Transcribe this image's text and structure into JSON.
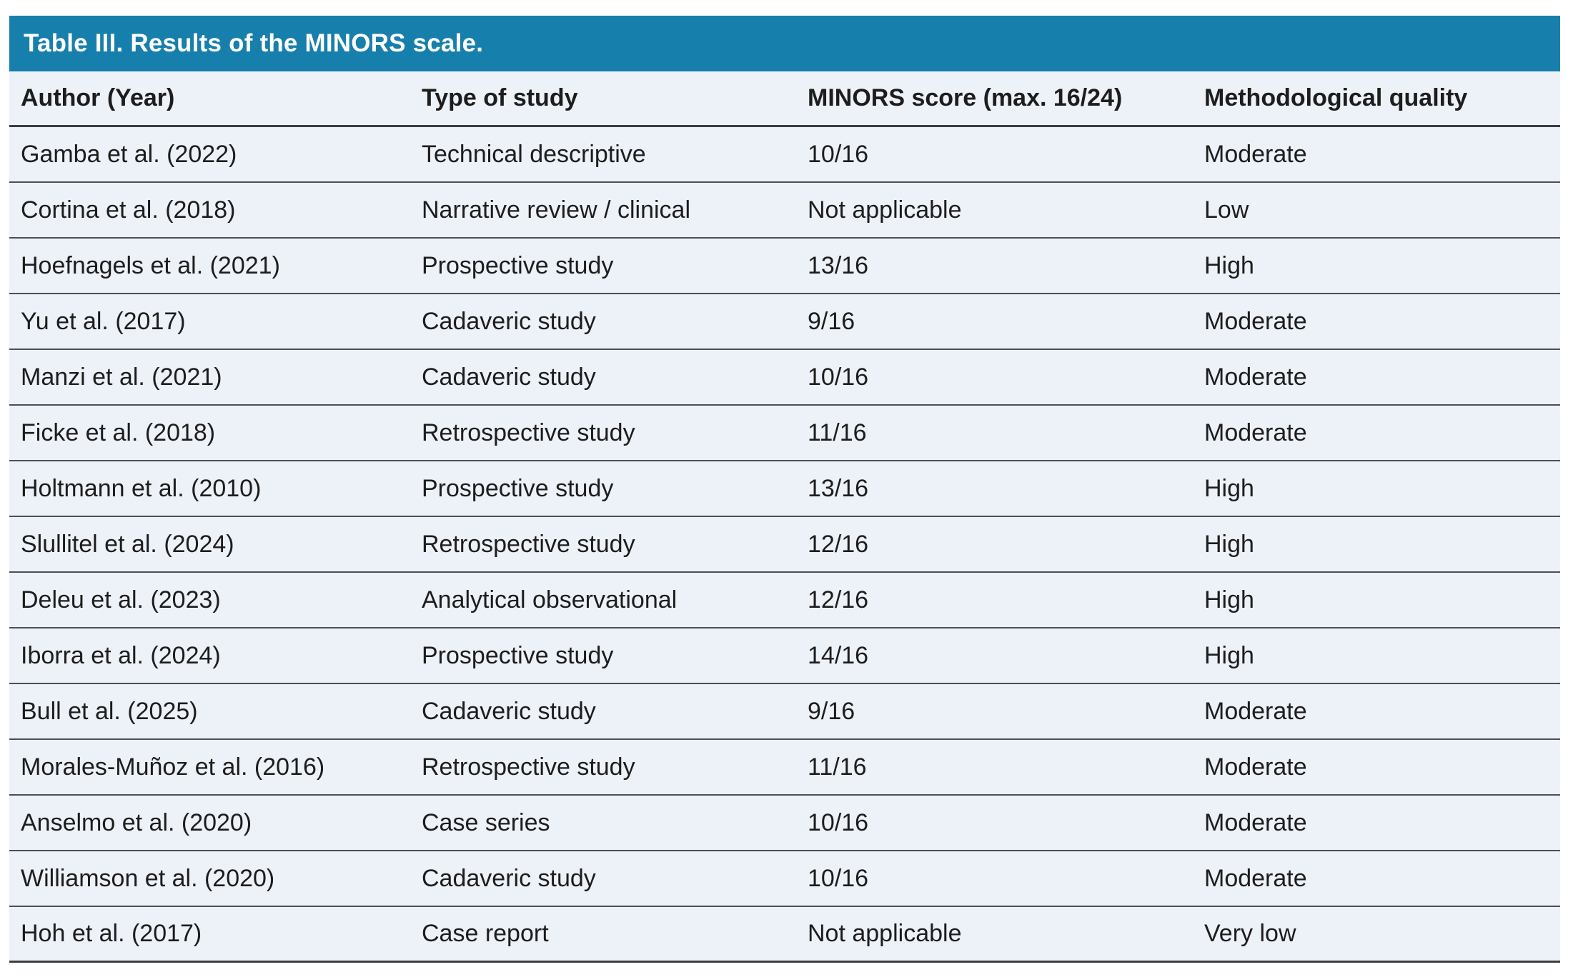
{
  "table": {
    "title": "Table III. Results of the MINORS scale.",
    "columns": [
      "Author (Year)",
      "Type of study",
      "MINORS score (max. 16/24)",
      "Methodological quality"
    ],
    "rows": [
      {
        "author": "Gamba et al. (2022)",
        "type_of_study": "Technical descriptive",
        "minors_score": "10/16",
        "quality": "Moderate"
      },
      {
        "author": "Cortina et al. (2018)",
        "type_of_study": "Narrative review / clinical",
        "minors_score": "Not applicable",
        "quality": "Low"
      },
      {
        "author": "Hoefnagels et al. (2021)",
        "type_of_study": "Prospective study",
        "minors_score": "13/16",
        "quality": "High"
      },
      {
        "author": "Yu et al. (2017)",
        "type_of_study": "Cadaveric study",
        "minors_score": "9/16",
        "quality": "Moderate"
      },
      {
        "author": "Manzi et al. (2021)",
        "type_of_study": "Cadaveric study",
        "minors_score": "10/16",
        "quality": "Moderate"
      },
      {
        "author": "Ficke et al. (2018)",
        "type_of_study": "Retrospective study",
        "minors_score": "11/16",
        "quality": "Moderate"
      },
      {
        "author": "Holtmann et al. (2010)",
        "type_of_study": "Prospective study",
        "minors_score": "13/16",
        "quality": "High"
      },
      {
        "author": "Slullitel et al. (2024)",
        "type_of_study": "Retrospective study",
        "minors_score": "12/16",
        "quality": "High"
      },
      {
        "author": "Deleu et al. (2023)",
        "type_of_study": "Analytical observational",
        "minors_score": "12/16",
        "quality": "High"
      },
      {
        "author": "Iborra et al. (2024)",
        "type_of_study": "Prospective study",
        "minors_score": "14/16",
        "quality": "High"
      },
      {
        "author": "Bull et al. (2025)",
        "type_of_study": "Cadaveric study",
        "minors_score": "9/16",
        "quality": "Moderate"
      },
      {
        "author": "Morales-Muñoz et al. (2016)",
        "type_of_study": "Retrospective study",
        "minors_score": "11/16",
        "quality": "Moderate"
      },
      {
        "author": "Anselmo et al. (2020)",
        "type_of_study": "Case series",
        "minors_score": "10/16",
        "quality": "Moderate"
      },
      {
        "author": "Williamson et al. (2020)",
        "type_of_study": "Cadaveric study",
        "minors_score": "10/16",
        "quality": "Moderate"
      },
      {
        "author": "Hoh et al. (2017)",
        "type_of_study": "Case report",
        "minors_score": "Not applicable",
        "quality": "Very low"
      }
    ]
  },
  "colors": {
    "title_bar_bg": "#177fab",
    "title_text": "#ffffff",
    "row_bg": "#edf1f8",
    "body_text": "#1d1d1d",
    "divider": "#4b5054",
    "strong_line": "#3a3e42"
  }
}
